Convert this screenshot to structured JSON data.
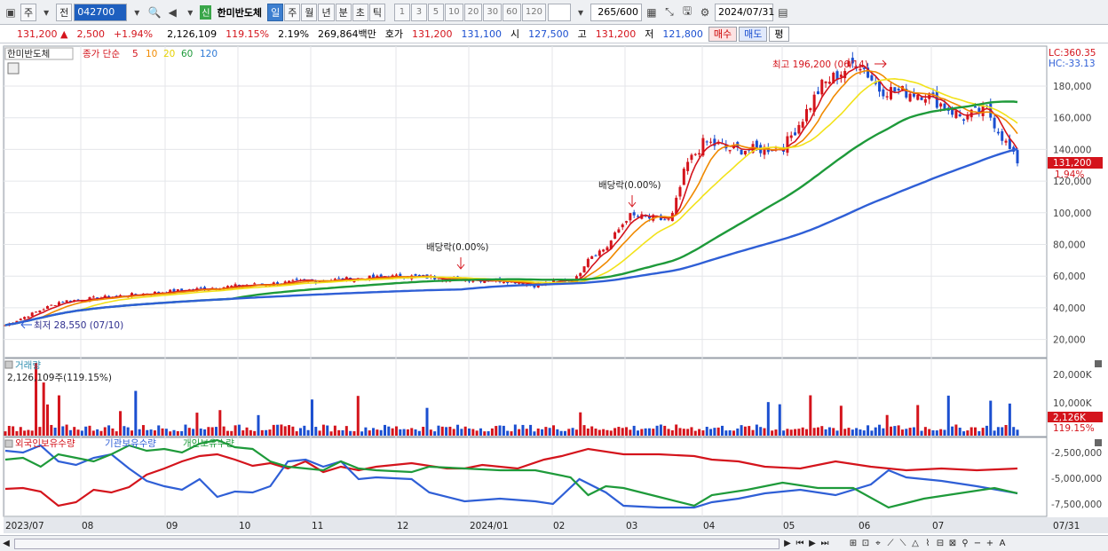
{
  "toolbar": {
    "mode1": "주",
    "mode2": "전",
    "code": "042700",
    "shin": "신",
    "stock_name": "한미반도체",
    "periods": [
      "일",
      "주",
      "월",
      "년",
      "분",
      "초",
      "틱"
    ],
    "active_period": "일",
    "intervals": [
      "1",
      "3",
      "5",
      "10",
      "20",
      "30",
      "60",
      "120"
    ],
    "count": "265",
    "count_max": "/600",
    "date": "2024/07/31"
  },
  "quote": {
    "price": "131,200",
    "change": "2,500",
    "rate": "+1.94%",
    "volume": "2,126,109",
    "vol_ratio": "119.15%",
    "turnover": "2.19%",
    "amount": "269,864백만",
    "hoga_label": "호가",
    "ask": "131,200",
    "bid": "131,100",
    "open_label": "시",
    "open": "127,500",
    "high_label": "고",
    "high": "131,200",
    "low_label": "저",
    "low": "121,800",
    "buy_label": "매수",
    "sell_label": "매도",
    "eval_label": "평"
  },
  "price_panel": {
    "title": "한미반도체",
    "ma_label": "종가 단순",
    "ma": [
      {
        "period": "5",
        "color": "#d4141c"
      },
      {
        "period": "10",
        "color": "#f08a00"
      },
      {
        "period": "20",
        "color": "#f2e21a"
      },
      {
        "period": "60",
        "color": "#1e9a3a"
      },
      {
        "period": "120",
        "color": "#2f5fd6"
      }
    ],
    "lc": "LC:360.35",
    "hc": "HC:-33.13",
    "price_tag": "131,200",
    "rate_tag": "1.94%",
    "y_ticks": [
      "180,000",
      "160,000",
      "140,000",
      "120,000",
      "100,000",
      "80,000",
      "60,000",
      "40,000",
      "20,000"
    ],
    "high_note": "최고 196,200 (06/14)",
    "low_note": "최저 28,550 (07/10)",
    "dividend_note1": "배당락(0.00%)",
    "dividend_note2": "배당락(0.00%)"
  },
  "volume_panel": {
    "title": "거래량",
    "info": "2,126,109주(119.15%)",
    "y_ticks": [
      "20,000K",
      "10,000K"
    ],
    "tag": "2,126K",
    "tag2": "119.15%"
  },
  "holding_panel": {
    "series": [
      {
        "name": "외국인보유수량",
        "color": "#d4141c"
      },
      {
        "name": "기관보유수량",
        "color": "#2f5fd6"
      },
      {
        "name": "개인보유수량",
        "color": "#1e9a3a"
      }
    ],
    "y_ticks": [
      "-2,500,000",
      "-5,000,000",
      "-7,500,000"
    ]
  },
  "x_axis": [
    "2023/07",
    "08",
    "09",
    "10",
    "11",
    "12",
    "2024/01",
    "02",
    "03",
    "04",
    "05",
    "06",
    "07"
  ],
  "x_end": "07/31"
}
